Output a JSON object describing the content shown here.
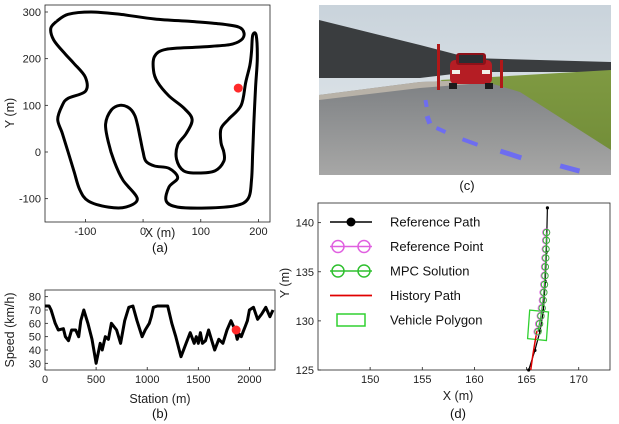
{
  "chart_data": [
    {
      "panel": "(a)",
      "type": "line",
      "xlabel": "X (m)",
      "ylabel": "Y (m)",
      "xlim": [
        -170,
        220
      ],
      "ylim": [
        -150,
        315
      ],
      "xticks": [
        "-100",
        "0",
        "100",
        "200"
      ],
      "yticks": [
        "300",
        "200",
        "100",
        "0",
        "-100"
      ],
      "series": [
        {
          "kind": "closed-path",
          "color": "#000000",
          "points": [
            [
              -150,
              280
            ],
            [
              -130,
              295
            ],
            [
              -90,
              300
            ],
            [
              -40,
              295
            ],
            [
              20,
              285
            ],
            [
              80,
              280
            ],
            [
              130,
              275
            ],
            [
              165,
              268
            ],
            [
              175,
              255
            ],
            [
              170,
              240
            ],
            [
              150,
              230
            ],
            [
              100,
              225
            ],
            [
              40,
              220
            ],
            [
              20,
              205
            ],
            [
              18,
              175
            ],
            [
              25,
              150
            ],
            [
              45,
              120
            ],
            [
              70,
              95
            ],
            [
              85,
              70
            ],
            [
              75,
              40
            ],
            [
              60,
              15
            ],
            [
              58,
              -15
            ],
            [
              70,
              -40
            ],
            [
              95,
              -45
            ],
            [
              125,
              -40
            ],
            [
              140,
              -20
            ],
            [
              140,
              0
            ],
            [
              135,
              20
            ],
            [
              135,
              50
            ],
            [
              148,
              70
            ],
            [
              170,
              100
            ],
            [
              178,
              150
            ],
            [
              185,
              185
            ],
            [
              188,
              215
            ],
            [
              190,
              250
            ],
            [
              196,
              250
            ],
            [
              198,
              200
            ],
            [
              195,
              140
            ],
            [
              192,
              60
            ],
            [
              190,
              0
            ],
            [
              188,
              -60
            ],
            [
              182,
              -100
            ],
            [
              160,
              -115
            ],
            [
              110,
              -120
            ],
            [
              60,
              -118
            ],
            [
              40,
              -105
            ],
            [
              45,
              -75
            ],
            [
              60,
              -55
            ],
            [
              45,
              -35
            ],
            [
              20,
              -30
            ],
            [
              5,
              -20
            ],
            [
              0,
              0
            ],
            [
              -5,
              30
            ],
            [
              -10,
              60
            ],
            [
              -15,
              80
            ],
            [
              -25,
              95
            ],
            [
              -40,
              100
            ],
            [
              -55,
              90
            ],
            [
              -65,
              60
            ],
            [
              -60,
              20
            ],
            [
              -50,
              -20
            ],
            [
              -35,
              -60
            ],
            [
              -10,
              -100
            ],
            [
              -30,
              -118
            ],
            [
              -60,
              -118
            ],
            [
              -95,
              -105
            ],
            [
              -110,
              -80
            ],
            [
              -120,
              -40
            ],
            [
              -130,
              0
            ],
            [
              -140,
              40
            ],
            [
              -148,
              70
            ],
            [
              -140,
              100
            ],
            [
              -130,
              115
            ],
            [
              -100,
              130
            ],
            [
              -100,
              160
            ],
            [
              -120,
              190
            ],
            [
              -135,
              210
            ],
            [
              -155,
              240
            ],
            [
              -160,
              265
            ],
            [
              -150,
              280
            ]
          ]
        }
      ],
      "marker": {
        "x": 165,
        "y": 137,
        "color": "#ff2a2a"
      }
    },
    {
      "panel": "(b)",
      "type": "line",
      "xlabel": "Station (m)",
      "ylabel": "Speed (km/h)",
      "xlim": [
        0,
        2250
      ],
      "ylim": [
        25,
        85
      ],
      "xticks": [
        "0",
        "500",
        "1000",
        "1500",
        "2000"
      ],
      "yticks": [
        "80",
        "70",
        "60",
        "50",
        "40",
        "30"
      ],
      "series": [
        {
          "color": "#000000",
          "x": [
            0,
            40,
            60,
            100,
            130,
            180,
            200,
            230,
            260,
            300,
            330,
            350,
            380,
            420,
            460,
            500,
            540,
            560,
            590,
            620,
            650,
            700,
            740,
            780,
            820,
            860,
            900,
            950,
            980,
            1020,
            1040,
            1060,
            1100,
            1140,
            1170,
            1200,
            1240,
            1280,
            1330,
            1380,
            1420,
            1460,
            1480,
            1500,
            1520,
            1540,
            1570,
            1600,
            1620,
            1640,
            1660,
            1700,
            1740,
            1780,
            1820,
            1860,
            1880,
            1900,
            1920,
            1940,
            1960,
            1980,
            2000,
            2040,
            2080,
            2120,
            2160,
            2200,
            2230
          ],
          "y": [
            73,
            73,
            70,
            60,
            55,
            56,
            50,
            47,
            55,
            55,
            50,
            62,
            70,
            60,
            48,
            30,
            45,
            40,
            50,
            48,
            60,
            55,
            45,
            62,
            72,
            73,
            62,
            50,
            55,
            60,
            65,
            72,
            73,
            73,
            73,
            73,
            60,
            50,
            35,
            45,
            53,
            45,
            50,
            45,
            53,
            45,
            47,
            55,
            50,
            45,
            40,
            48,
            45,
            55,
            62,
            55,
            48,
            52,
            50,
            54,
            58,
            62,
            70,
            72,
            63,
            67,
            72,
            65,
            70
          ]
        }
      ],
      "marker": {
        "x": 1870,
        "y": 55,
        "color": "#ff2a2a"
      }
    },
    {
      "panel": "(d)",
      "type": "line",
      "xlabel": "X (m)",
      "ylabel": "Y (m)",
      "xlim": [
        145,
        173
      ],
      "ylim": [
        125,
        142
      ],
      "xticks": [
        "150",
        "155",
        "160",
        "165",
        "170"
      ],
      "yticks": [
        "140",
        "135",
        "130",
        "125"
      ],
      "legend": [
        "Reference Path",
        "Reference Point",
        "MPC Solution",
        "History Path",
        "Vehicle Polygon"
      ],
      "legend_position": "top-left",
      "reference_path": {
        "x": [
          165.2,
          165.8,
          166.3,
          166.6,
          166.8,
          166.9,
          167.0
        ],
        "y": [
          125,
          127,
          129,
          131,
          134,
          137,
          141.5
        ]
      },
      "reference_points": {
        "x": [
          166.05,
          166.2,
          166.35,
          166.45,
          166.55,
          166.62,
          166.68,
          166.72,
          166.76,
          166.8,
          166.83,
          166.86,
          166.88
        ],
        "y": [
          128.9,
          129.7,
          130.5,
          131.3,
          132.1,
          132.9,
          133.7,
          134.6,
          135.5,
          136.4,
          137.3,
          138.2,
          139.0
        ]
      },
      "mpc_solution": {
        "x": [
          166.1,
          166.25,
          166.38,
          166.5,
          166.6,
          166.66,
          166.72,
          166.77,
          166.8,
          166.84,
          166.87,
          166.9,
          166.92
        ],
        "y": [
          128.9,
          129.7,
          130.5,
          131.3,
          132.1,
          132.9,
          133.7,
          134.6,
          135.5,
          136.4,
          137.3,
          138.2,
          139.0
        ]
      },
      "history_path": {
        "x": [
          165.4,
          165.6,
          165.8,
          166.0
        ],
        "y": [
          125,
          126.5,
          127.8,
          129
        ]
      },
      "vehicle_polygon": {
        "x": [
          165.1,
          166.9,
          167.1,
          165.3,
          165.1
        ],
        "y": [
          128.2,
          128.0,
          130.9,
          131.1,
          128.2
        ]
      }
    }
  ],
  "captions": {
    "a": "(a)",
    "b": "(b)",
    "c": "(c)",
    "d": "(d)"
  },
  "colors": {
    "track": "#000000",
    "marker": "#ff2a2a",
    "reference_point": "#e060e0",
    "mpc_solution": "#30c030",
    "history_path": "#e00000",
    "vehicle_polygon": "#30d030"
  }
}
